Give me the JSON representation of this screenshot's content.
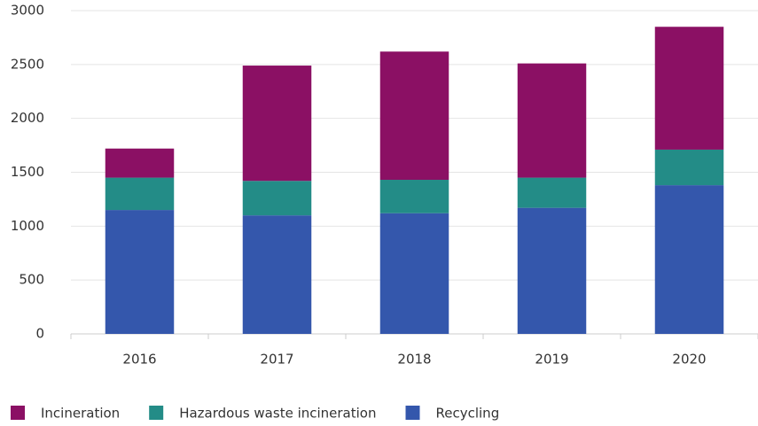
{
  "chart_data": {
    "type": "stacked_bar",
    "categories": [
      "2016",
      "2017",
      "2018",
      "2019",
      "2020"
    ],
    "series": [
      {
        "name": "Incineration",
        "color": "#8b1064",
        "values": [
          270,
          1070,
          1190,
          1060,
          1140
        ]
      },
      {
        "name": "Hazardous waste incineration",
        "color": "#238c87",
        "values": [
          300,
          320,
          310,
          280,
          330
        ]
      },
      {
        "name": "Recycling",
        "color": "#3457ac",
        "values": [
          1150,
          1100,
          1120,
          1170,
          1380
        ]
      }
    ],
    "ylim": [
      0,
      3000
    ],
    "yticks": [
      0,
      500,
      1000,
      1500,
      2000,
      2500,
      3000
    ],
    "grid": true,
    "legend": "bottom"
  }
}
